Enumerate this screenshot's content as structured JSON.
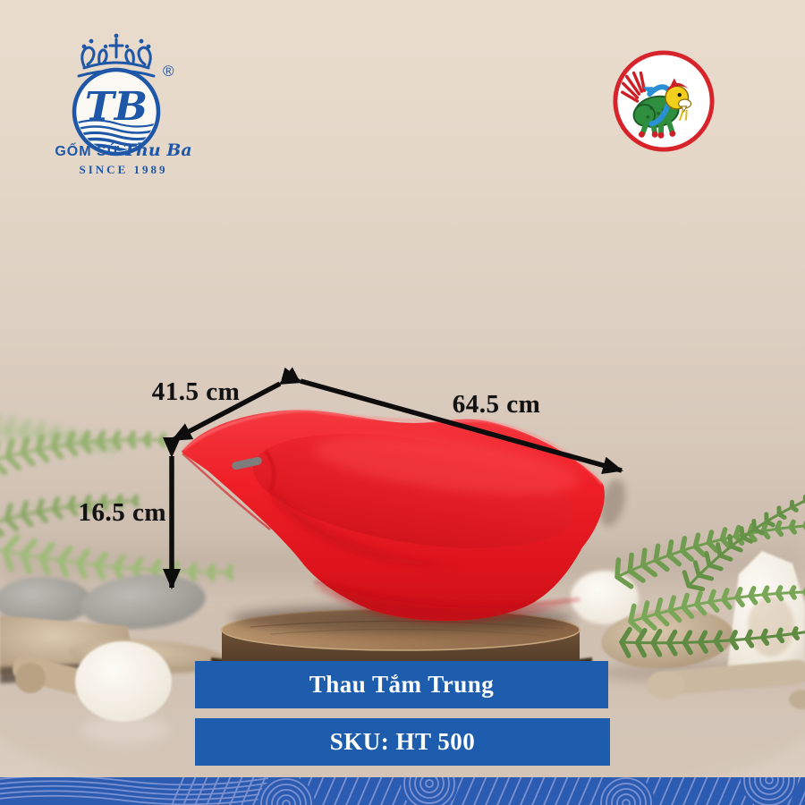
{
  "brand": {
    "monogram": "TB",
    "registered": "®",
    "name_caps": "GỐM SỨ",
    "name_script": " Thu Ba",
    "since": "SINCE 1989"
  },
  "product": {
    "name": "Thau Tắm Trung",
    "sku_label": "SKU: HT 500"
  },
  "dimensions": {
    "width": "41.5 cm",
    "length": "64.5 cm",
    "height": "16.5 cm"
  },
  "colors": {
    "banner_blue": "#1e5dad",
    "logo_blue": "#1f57a8",
    "tub_red": "#ee1f27",
    "badge_ring_red": "#d7232a",
    "wave_band_blue": "#2b5cb2",
    "wave_line_blue": "#8094d2",
    "background_beige": "#e3d5c7",
    "arrow_black": "#0d0d0d"
  }
}
